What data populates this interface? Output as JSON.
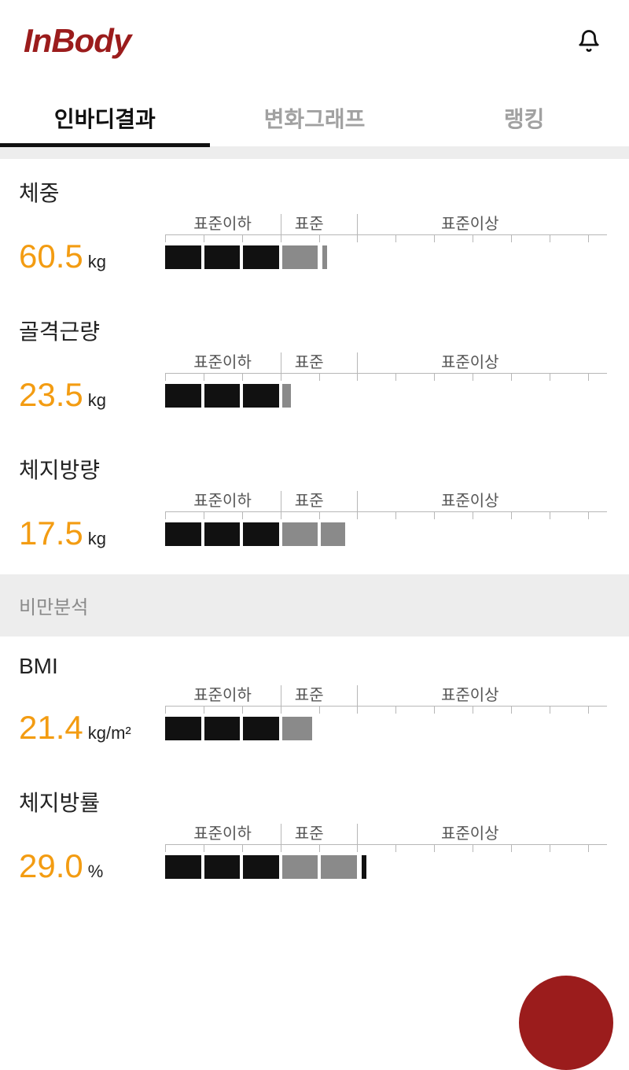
{
  "colors": {
    "brand": "#9b1c1c",
    "accent": "#f39c12",
    "black": "#111111",
    "gray_bar": "#8a8a8a",
    "tick": "#b7b7b7",
    "band": "#ededed",
    "tab_inactive": "#a1a1a1"
  },
  "header": {
    "logo_text": "InBody"
  },
  "tabs": {
    "items": [
      {
        "label": "인바디결과",
        "active": true
      },
      {
        "label": "변화그래프",
        "active": false
      },
      {
        "label": "랭킹",
        "active": false
      }
    ]
  },
  "chart_scale": {
    "tick_positions_pct": [
      0,
      8.7,
      17.4,
      26.1,
      34.8,
      43.5,
      52.2,
      60.9,
      69.6,
      78.3,
      87.0,
      95.7
    ],
    "zone_labels": {
      "below": "표준이하",
      "normal": "표준",
      "above": "표준이상"
    },
    "zone_label_centers_pct": {
      "below": 13.0,
      "normal": 32.6,
      "above": 69.0
    },
    "zone_divider_ticks_pct": [
      26.1,
      43.5
    ]
  },
  "sections": [
    {
      "title": null,
      "metrics": [
        {
          "label": "체중",
          "value": "60.5",
          "unit": "kg",
          "bar": {
            "segments": [
              {
                "w_pct": 8.1,
                "color": "#111111"
              },
              {
                "w_pct": 8.1,
                "color": "#111111"
              },
              {
                "w_pct": 8.1,
                "color": "#111111"
              },
              {
                "w_pct": 8.1,
                "color": "#8a8a8a"
              }
            ],
            "cap": {
              "color": "#8a8a8a"
            }
          }
        },
        {
          "label": "골격근량",
          "value": "23.5",
          "unit": "kg",
          "bar": {
            "segments": [
              {
                "w_pct": 8.1,
                "color": "#111111"
              },
              {
                "w_pct": 8.1,
                "color": "#111111"
              },
              {
                "w_pct": 8.1,
                "color": "#111111"
              },
              {
                "w_pct": 2.0,
                "color": "#8a8a8a"
              }
            ],
            "cap": null
          }
        },
        {
          "label": "체지방량",
          "value": "17.5",
          "unit": "kg",
          "bar": {
            "segments": [
              {
                "w_pct": 8.1,
                "color": "#111111"
              },
              {
                "w_pct": 8.1,
                "color": "#111111"
              },
              {
                "w_pct": 8.1,
                "color": "#111111"
              },
              {
                "w_pct": 8.1,
                "color": "#8a8a8a"
              },
              {
                "w_pct": 5.5,
                "color": "#8a8a8a"
              }
            ],
            "cap": null
          }
        }
      ]
    },
    {
      "title": "비만분석",
      "metrics": [
        {
          "label": "BMI",
          "value": "21.4",
          "unit": "kg/m²",
          "bar": {
            "segments": [
              {
                "w_pct": 8.1,
                "color": "#111111"
              },
              {
                "w_pct": 8.1,
                "color": "#111111"
              },
              {
                "w_pct": 8.1,
                "color": "#111111"
              },
              {
                "w_pct": 6.8,
                "color": "#8a8a8a"
              }
            ],
            "cap": null
          }
        },
        {
          "label": "체지방률",
          "value": "29.0",
          "unit": "%",
          "bar": {
            "segments": [
              {
                "w_pct": 8.1,
                "color": "#111111"
              },
              {
                "w_pct": 8.1,
                "color": "#111111"
              },
              {
                "w_pct": 8.1,
                "color": "#111111"
              },
              {
                "w_pct": 8.1,
                "color": "#8a8a8a"
              },
              {
                "w_pct": 8.1,
                "color": "#8a8a8a"
              }
            ],
            "cap": {
              "color": "#111111"
            }
          }
        }
      ]
    }
  ]
}
